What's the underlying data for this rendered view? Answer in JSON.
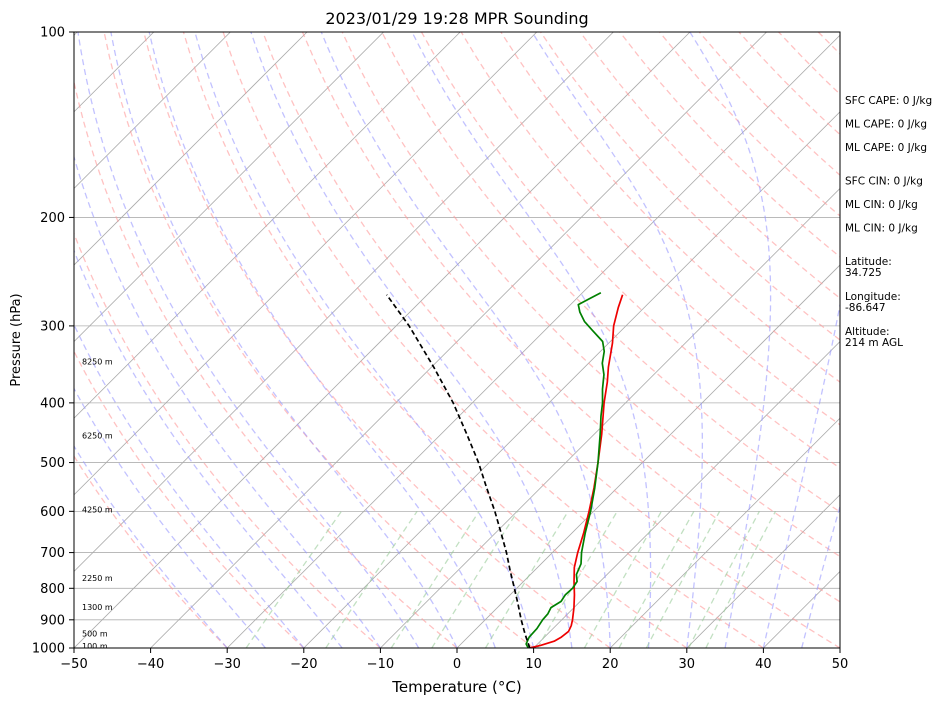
{
  "chart_data": {
    "type": "line",
    "title": "2023/01/29 19:28 MPR Sounding",
    "xlabel": "Temperature (°C)",
    "ylabel": "Pressure (hPa)",
    "xlim": [
      -50,
      50
    ],
    "ylim": [
      1000,
      100
    ],
    "y_scale": "log",
    "skew": "skew-T",
    "grid": true,
    "x_ticks": [
      -50,
      -40,
      -30,
      -20,
      -10,
      0,
      10,
      20,
      30,
      40,
      50
    ],
    "x_tick_labels": [
      "−50",
      "−40",
      "−30",
      "−20",
      "−10",
      "0",
      "10",
      "20",
      "30",
      "40",
      "50"
    ],
    "y_ticks": [
      1000,
      900,
      800,
      700,
      600,
      500,
      400,
      300,
      200,
      100
    ],
    "y_tick_labels": [
      "1000",
      "900",
      "800",
      "700",
      "600",
      "500",
      "400",
      "300",
      "200",
      "100"
    ],
    "series": [
      {
        "key": "temperature",
        "color": "#ee0000",
        "style": "solid",
        "points": [
          [
            1000,
            9.5
          ],
          [
            990,
            10.6
          ],
          [
            975,
            11.8
          ],
          [
            960,
            12.2
          ],
          [
            940,
            12.4
          ],
          [
            920,
            12.0
          ],
          [
            900,
            11.4
          ],
          [
            860,
            10.0
          ],
          [
            820,
            8.4
          ],
          [
            780,
            6.6
          ],
          [
            740,
            4.8
          ],
          [
            700,
            3.3
          ],
          [
            650,
            1.5
          ],
          [
            600,
            -0.6
          ],
          [
            550,
            -3.0
          ],
          [
            500,
            -5.8
          ],
          [
            450,
            -9.0
          ],
          [
            400,
            -12.8
          ],
          [
            370,
            -15.1
          ],
          [
            350,
            -16.9
          ],
          [
            320,
            -19.5
          ],
          [
            300,
            -21.6
          ],
          [
            280,
            -23.4
          ],
          [
            267,
            -24.5
          ]
        ]
      },
      {
        "key": "dewpoint",
        "color": "#008000",
        "style": "solid",
        "points": [
          [
            1000,
            9.3
          ],
          [
            985,
            8.5
          ],
          [
            960,
            8.0
          ],
          [
            930,
            7.9
          ],
          [
            900,
            7.5
          ],
          [
            880,
            7.4
          ],
          [
            860,
            7.0
          ],
          [
            840,
            7.5
          ],
          [
            820,
            7.2
          ],
          [
            800,
            7.3
          ],
          [
            780,
            7.0
          ],
          [
            760,
            6.0
          ],
          [
            730,
            5.2
          ],
          [
            700,
            3.8
          ],
          [
            650,
            1.7
          ],
          [
            600,
            -0.4
          ],
          [
            550,
            -2.9
          ],
          [
            500,
            -5.8
          ],
          [
            450,
            -9.2
          ],
          [
            420,
            -11.5
          ],
          [
            400,
            -13.0
          ],
          [
            380,
            -14.8
          ],
          [
            360,
            -16.5
          ],
          [
            345,
            -18.2
          ],
          [
            330,
            -19.5
          ],
          [
            318,
            -21.0
          ],
          [
            305,
            -23.8
          ],
          [
            295,
            -26.0
          ],
          [
            285,
            -27.8
          ],
          [
            277,
            -29.0
          ],
          [
            270,
            -28.2
          ],
          [
            265,
            -27.6
          ]
        ]
      },
      {
        "key": "parcel",
        "color": "#000000",
        "style": "dashed",
        "points": [
          [
            1000,
            9.5
          ],
          [
            950,
            7.1
          ],
          [
            900,
            4.7
          ],
          [
            850,
            2.3
          ],
          [
            800,
            -0.3
          ],
          [
            750,
            -3.1
          ],
          [
            700,
            -6.0
          ],
          [
            650,
            -9.3
          ],
          [
            600,
            -12.9
          ],
          [
            550,
            -17.0
          ],
          [
            500,
            -21.4
          ],
          [
            450,
            -26.6
          ],
          [
            400,
            -32.5
          ],
          [
            350,
            -39.7
          ],
          [
            300,
            -48.3
          ],
          [
            267,
            -55.3
          ]
        ]
      }
    ],
    "height_labels": [
      {
        "label": "100 m",
        "pressure": 1000
      },
      {
        "label": "500 m",
        "pressure": 955
      },
      {
        "label": "1300 m",
        "pressure": 865
      },
      {
        "label": "2250 m",
        "pressure": 775
      },
      {
        "label": "4250 m",
        "pressure": 600
      },
      {
        "label": "6250 m",
        "pressure": 455
      },
      {
        "label": "8250 m",
        "pressure": 345
      }
    ],
    "stats": [
      {
        "text": "SFC CAPE: 0 J/kg"
      },
      {
        "text": "ML CAPE: 0 J/kg"
      },
      {
        "text": "ML CAPE: 0 J/kg"
      },
      {
        "text": "SFC CIN: 0 J/kg"
      },
      {
        "text": "ML CIN: 0 J/kg"
      },
      {
        "text": "ML CIN: 0 J/kg"
      },
      {
        "text": "Latitude:",
        "text2": "34.725"
      },
      {
        "text": "Longitude:",
        "text2": "-86.647"
      },
      {
        "text": "Altitude:",
        "text2": "214 m AGL"
      }
    ],
    "reference_lines": {
      "isotherm_color": "#aaaaaa",
      "dry_adiabat_color": "#ff9999",
      "moist_adiabat_color": "#9999ff",
      "mixing_ratio_color": "#99cc99"
    }
  }
}
